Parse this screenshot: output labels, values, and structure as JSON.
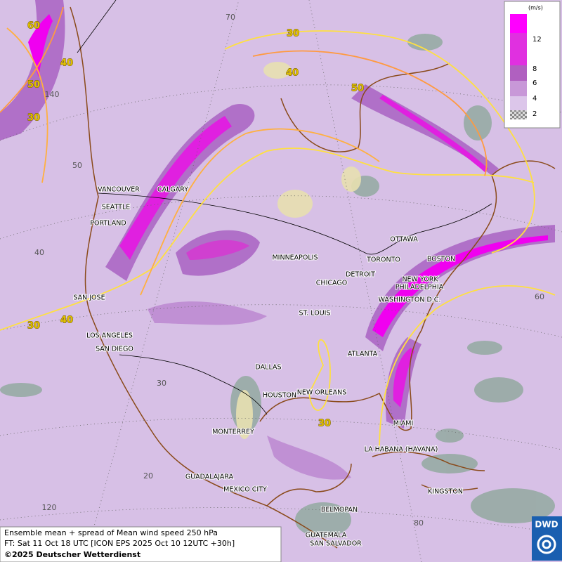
{
  "legend": {
    "unit": "(m/s)",
    "ticks": [
      12,
      8,
      6,
      4,
      2
    ]
  },
  "cities": [
    "VANCOUVER",
    "CALGARY",
    "SEATTLE",
    "PORTLAND",
    "MINNEAPOLIS",
    "OTTAWA",
    "TORONTO",
    "DETROIT",
    "BOSTON",
    "NEW YORK",
    "PHILADELPHIA",
    "CHICAGO",
    "WASHINGTON D.C.",
    "SAN JOSE",
    "ST. LOUIS",
    "LOS ANGELES",
    "SAN DIEGO",
    "ATLANTA",
    "DALLAS",
    "HOUSTON",
    "NEW ORLEANS",
    "MIAMI",
    "MONTERREY",
    "LA HABANA (HAVANA)",
    "GUADALAJARA",
    "MEXICO CITY",
    "KINGSTON",
    "BELMOPAN",
    "GUATEMALA",
    "SAN SALVADOR"
  ],
  "contour_labels": [
    60,
    40,
    50,
    30,
    30,
    40,
    50,
    30,
    40,
    30
  ],
  "grid_labels": [
    70,
    140,
    50,
    40,
    30,
    20,
    120,
    60,
    80
  ],
  "info": [
    "Ensemble mean + spread of Mean wind speed 250 hPa",
    "FT: Sat 11 Oct 18 UTC [ICON EPS 2025 Oct 10 12UTC +30h]",
    "©2025 Deutscher Wetterdienst"
  ],
  "logo": "DWD"
}
